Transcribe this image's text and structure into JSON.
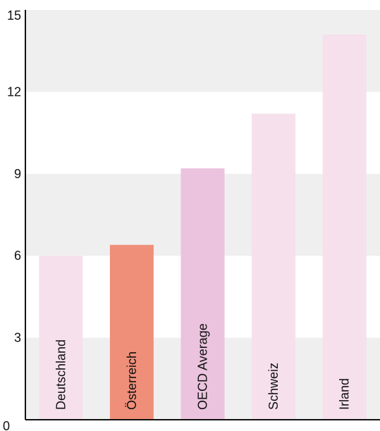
{
  "chart_data": {
    "type": "bar",
    "categories": [
      "Deutschland",
      "Österreich",
      "OECD Average",
      "Schweiz",
      "Irland"
    ],
    "values": [
      6.0,
      6.4,
      9.2,
      11.2,
      14.1
    ],
    "bar_colors": [
      "#f5e0ec",
      "#ef8f7a",
      "#ebc3de",
      "#f5e0ec",
      "#f5e0ec"
    ],
    "band_color": "#efefef",
    "ylim": [
      0,
      15
    ],
    "yticks": [
      "0",
      "3",
      "6",
      "9",
      "12",
      "15"
    ],
    "title": "",
    "xlabel": "",
    "ylabel": "",
    "grid": "alternating horizontal bands",
    "label_orientation": "vertical inside bars"
  }
}
